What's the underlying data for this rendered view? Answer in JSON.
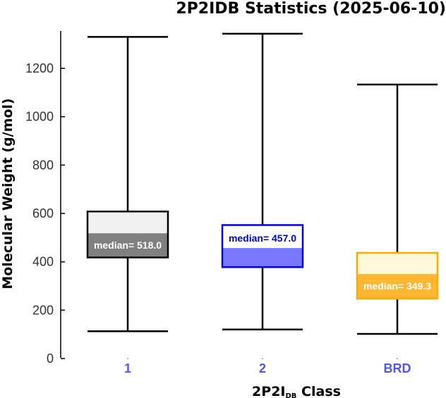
{
  "chart_data": {
    "type": "box",
    "title": "2P2IDB Statistics (2025-06-10)",
    "xlabel_main": "2P2I",
    "xlabel_sub": "DB",
    "xlabel_tail": " Class",
    "ylabel": "Molecular Weight (g/mol)",
    "ylim": [
      0,
      1350
    ],
    "yticks": [
      0,
      200,
      400,
      600,
      800,
      1000,
      1200
    ],
    "median_prefix": "median= ",
    "categories": [
      "1",
      "2",
      "BRD"
    ],
    "boxes": [
      {
        "category": "1",
        "min": 113,
        "q1": 418,
        "median": 518.0,
        "median_text": "518.0",
        "q3": 608,
        "max": 1330,
        "upper_fill": "#f0f0f0",
        "lower_fill": "#808080",
        "stroke": "#000000",
        "label_color": "#ffffff",
        "label_pos": "below"
      },
      {
        "category": "2",
        "min": 120,
        "q1": 378,
        "median": 457.0,
        "median_text": "457.0",
        "q3": 552,
        "max": 1343,
        "upper_fill": "#ffffff",
        "lower_fill": "#7777ff",
        "stroke": "#0000dd",
        "label_color": "#0000dd",
        "label_pos": "above"
      },
      {
        "category": "BRD",
        "min": 102,
        "q1": 248,
        "median": 349.3,
        "median_text": "349.3",
        "q3": 437,
        "max": 1133,
        "upper_fill": "#fff8d8",
        "lower_fill": "#ffb733",
        "stroke": "#ffaa00",
        "label_color": "#ffffff",
        "label_pos": "below"
      }
    ]
  }
}
